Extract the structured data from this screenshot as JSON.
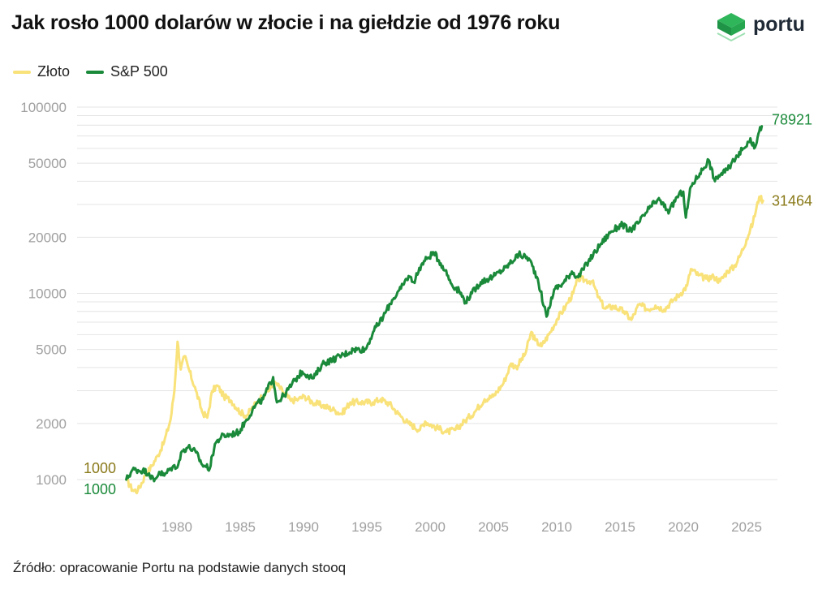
{
  "header": {
    "title": "Jak rosło 1000 dolarów w złocie i na giełdzie od 1976 roku",
    "logo_text": "portu"
  },
  "footer": {
    "source": "Źródło: opracowanie Portu na podstawie danych stooq"
  },
  "colors": {
    "gold": "#f9e27a",
    "sp500": "#1a8a3a",
    "gold_label": "#8a7a1a",
    "sp500_label": "#1a8a3a",
    "logo_green": "#2fb65a"
  },
  "chart_data": {
    "type": "line",
    "yscale": "log",
    "ylim": [
      650,
      100000
    ],
    "xlim": [
      1975.6,
      2027.2
    ],
    "yticks": [
      1000,
      2000,
      5000,
      10000,
      20000,
      50000,
      100000
    ],
    "ytick_labels": [
      "1000",
      "2000",
      "5000",
      "10000",
      "20000",
      "50000",
      "100000"
    ],
    "xticks": [
      1980,
      1985,
      1990,
      1995,
      2000,
      2005,
      2010,
      2015,
      2020,
      2025
    ],
    "xtick_labels": [
      "1980",
      "1985",
      "1990",
      "1995",
      "2000",
      "2005",
      "2010",
      "2015",
      "2020",
      "2025"
    ],
    "grid": true,
    "legend_position": "top-left",
    "series": [
      {
        "name": "Złoto",
        "x": [
          1976.0,
          1976.5,
          1976.9,
          1977.5,
          1978.0,
          1978.5,
          1979.0,
          1979.5,
          1979.8,
          1980.05,
          1980.3,
          1980.6,
          1981.0,
          1981.5,
          1982.0,
          1982.4,
          1982.8,
          1983.2,
          1983.7,
          1984.3,
          1985.0,
          1985.5,
          1986.0,
          1986.5,
          1987.0,
          1987.8,
          1988.5,
          1989.0,
          1989.6,
          1990.1,
          1990.7,
          1991.5,
          1992.5,
          1993.0,
          1993.7,
          1994.5,
          1995.5,
          1996.1,
          1996.8,
          1997.5,
          1998.3,
          1999.2,
          1999.6,
          2000.5,
          2001.3,
          2002.0,
          2002.7,
          2003.5,
          2004.3,
          2005.0,
          2005.8,
          2006.4,
          2006.8,
          2007.5,
          2008.0,
          2008.3,
          2008.8,
          2009.5,
          2010.0,
          2010.7,
          2011.3,
          2011.7,
          2012.2,
          2012.8,
          2013.3,
          2013.8,
          2014.5,
          2015.3,
          2015.9,
          2016.5,
          2017.2,
          2017.8,
          2018.5,
          2019.2,
          2019.8,
          2020.3,
          2020.6,
          2021.2,
          2021.8,
          2022.4,
          2022.9,
          2023.5,
          2024.0,
          2024.5,
          2025.0,
          2025.5,
          2026.0,
          2026.3
        ],
        "values": [
          1000,
          880,
          870,
          1050,
          1180,
          1350,
          1600,
          2100,
          3000,
          5500,
          3900,
          4600,
          3800,
          3000,
          2300,
          2150,
          3000,
          3200,
          2800,
          2650,
          2300,
          2200,
          2450,
          2700,
          2900,
          3300,
          2900,
          2650,
          2700,
          2800,
          2600,
          2500,
          2350,
          2250,
          2600,
          2600,
          2600,
          2700,
          2550,
          2250,
          2000,
          1850,
          2050,
          1900,
          1800,
          1850,
          2050,
          2300,
          2700,
          2800,
          3300,
          4200,
          4000,
          4700,
          6200,
          5600,
          5200,
          6200,
          7200,
          8500,
          10000,
          12000,
          11800,
          11600,
          9500,
          8300,
          8500,
          8000,
          7200,
          8700,
          8200,
          8600,
          8200,
          9200,
          10000,
          11000,
          13500,
          12500,
          12000,
          12300,
          11600,
          13200,
          13800,
          16000,
          19500,
          24000,
          33000,
          31464
        ],
        "end_label": "31464",
        "start_label": "1000"
      },
      {
        "name": "S&P 500",
        "x": [
          1976.0,
          1976.5,
          1977.3,
          1977.8,
          1978.2,
          1978.6,
          1979.0,
          1979.5,
          1980.1,
          1980.4,
          1980.9,
          1981.5,
          1982.0,
          1982.6,
          1983.0,
          1983.5,
          1984.3,
          1984.9,
          1985.5,
          1986.2,
          1986.8,
          1987.6,
          1987.9,
          1988.5,
          1989.3,
          1989.9,
          1990.3,
          1990.8,
          1991.5,
          1992.3,
          1993.2,
          1994.0,
          1994.9,
          1995.5,
          1996.3,
          1997.0,
          1997.7,
          1998.3,
          1998.7,
          1999.3,
          1999.8,
          2000.3,
          2000.7,
          2001.2,
          2001.7,
          2002.3,
          2002.8,
          2003.3,
          2004.0,
          2005.0,
          2006.0,
          2007.0,
          2007.8,
          2008.5,
          2009.0,
          2009.2,
          2009.8,
          2010.5,
          2011.2,
          2011.7,
          2012.5,
          2013.5,
          2014.3,
          2015.2,
          2015.7,
          2016.5,
          2017.3,
          2018.0,
          2018.9,
          2019.5,
          2020.0,
          2020.2,
          2020.6,
          2021.3,
          2022.0,
          2022.5,
          2022.8,
          2023.5,
          2024.2,
          2024.8,
          2025.3,
          2025.6,
          2026.0,
          2026.2
        ],
        "values": [
          1000,
          1130,
          1120,
          1080,
          980,
          1100,
          1050,
          1150,
          1200,
          1420,
          1500,
          1400,
          1200,
          1150,
          1550,
          1700,
          1750,
          1800,
          2100,
          2500,
          2700,
          3550,
          2600,
          2850,
          3400,
          3800,
          3650,
          3500,
          4200,
          4400,
          4700,
          5000,
          5000,
          6200,
          7500,
          9200,
          10600,
          12400,
          11500,
          14200,
          15500,
          16500,
          15000,
          13300,
          11200,
          10300,
          9000,
          10000,
          11500,
          12300,
          13800,
          16200,
          15400,
          12000,
          8500,
          7500,
          10500,
          11300,
          13100,
          12200,
          14800,
          18500,
          21500,
          23500,
          21500,
          24000,
          28500,
          32000,
          27500,
          33000,
          35200,
          25500,
          37500,
          44000,
          52000,
          40000,
          43000,
          46000,
          55000,
          60000,
          68000,
          60000,
          74000,
          78921
        ],
        "end_label": "78921",
        "start_label": "1000"
      }
    ]
  }
}
